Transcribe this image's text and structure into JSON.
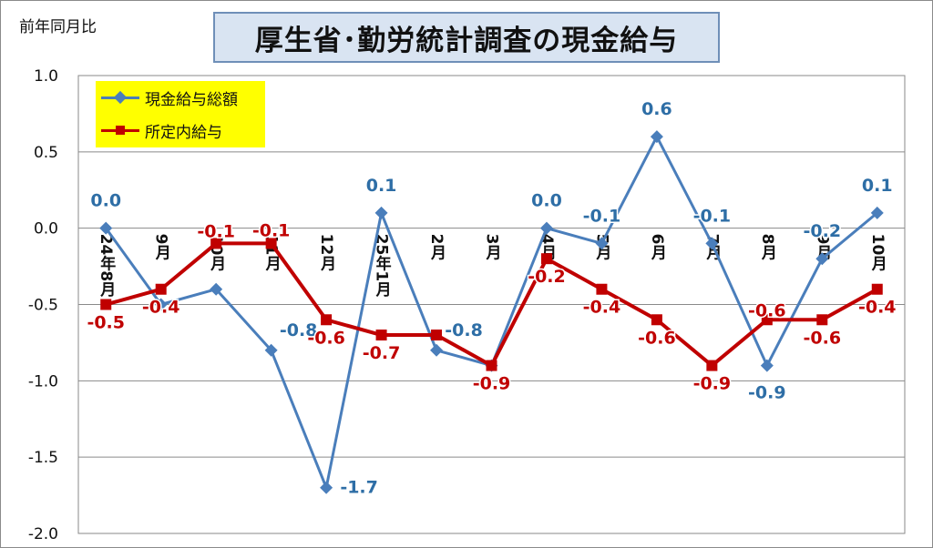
{
  "chart_data": {
    "type": "line",
    "title": "厚生省･勤労統計調査の現金給与",
    "ylabel": "前年同月比",
    "ylim": [
      -2.0,
      1.0
    ],
    "y_ticks": [
      "1.0",
      "0.5",
      "0.0",
      "-0.5",
      "-1.0",
      "-1.5",
      "-2.0"
    ],
    "categories": [
      "24年8月",
      "9月",
      "10月",
      "11月",
      "12月",
      "25年1月",
      "2月",
      "3月",
      "4月",
      "5月",
      "6月",
      "7月",
      "8月",
      "9月",
      "10月"
    ],
    "grid": true,
    "legend_position": "top-left",
    "series": [
      {
        "name": "現金給与総額",
        "color": "#4a7ebb",
        "marker": "diamond",
        "values": [
          0.0,
          -0.5,
          -0.4,
          -0.8,
          -1.7,
          0.1,
          -0.8,
          -0.9,
          0.0,
          -0.1,
          0.6,
          -0.1,
          -0.9,
          -0.2,
          0.1
        ],
        "labels": [
          "0.0",
          "",
          "",
          "-0.8",
          "-1.7",
          "0.1",
          "-0.8",
          "",
          "0.0",
          "-0.1",
          "0.6",
          "-0.1",
          "-0.9",
          "-0.2",
          "0.1"
        ]
      },
      {
        "name": "所定内給与",
        "color": "#c00000",
        "marker": "square",
        "values": [
          -0.5,
          -0.4,
          -0.1,
          -0.1,
          -0.6,
          -0.7,
          -0.7,
          -0.9,
          -0.2,
          -0.4,
          -0.6,
          -0.9,
          -0.6,
          -0.6,
          -0.4
        ],
        "labels": [
          "-0.5",
          "-0.4",
          "-0.1",
          "-0.1",
          "-0.6",
          "-0.7",
          "",
          "-0.9",
          "-0.2",
          "-0.4",
          "-0.6",
          "-0.9",
          "-0.6",
          "-0.6",
          "-0.4"
        ]
      }
    ]
  }
}
